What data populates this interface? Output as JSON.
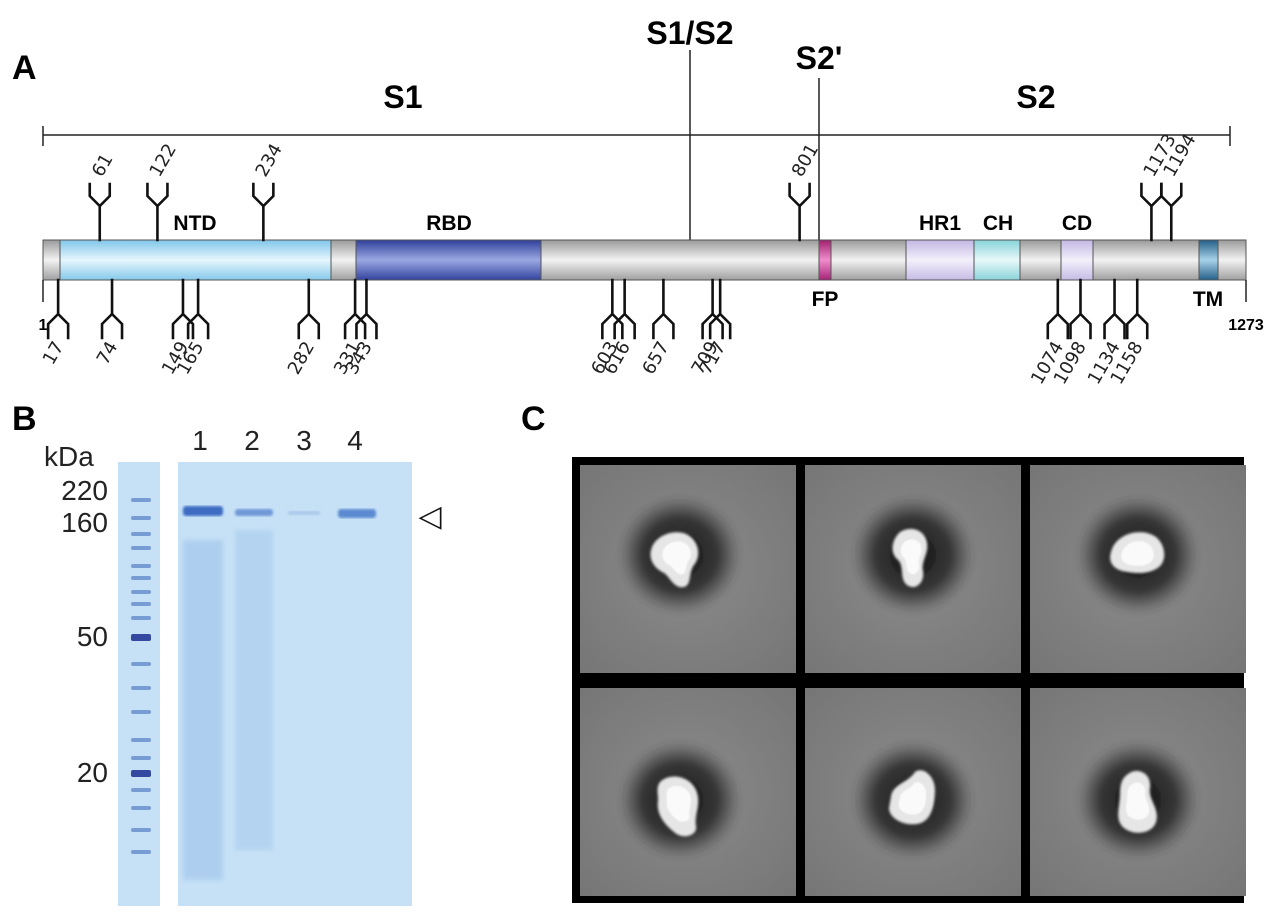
{
  "panels": {
    "a": {
      "letter": "A",
      "regions": {
        "s1": "S1",
        "s2": "S2",
        "s1s2": "S1/S2",
        "s2prime": "S2'"
      },
      "ends": {
        "start": "1",
        "end": "1273"
      },
      "domains": [
        {
          "id": "ntd",
          "label": "NTD",
          "color": "#a8dcf2"
        },
        {
          "id": "rbd",
          "label": "RBD",
          "color": "#4a5db8"
        },
        {
          "id": "fp",
          "label": "FP",
          "color": "#c0398c"
        },
        {
          "id": "hr1",
          "label": "HR1",
          "color": "#d8d0ee"
        },
        {
          "id": "ch",
          "label": "CH",
          "color": "#a9e2e6"
        },
        {
          "id": "cd",
          "label": "CD",
          "color": "#d8d0ee"
        },
        {
          "id": "tm",
          "label": "TM",
          "color": "#3f7fa6"
        }
      ],
      "glycans_top": [
        "61",
        "122",
        "234",
        "801",
        "1173",
        "1194"
      ],
      "glycans_bottom": [
        "17",
        "74",
        "149",
        "165",
        "282",
        "331",
        "343",
        "603",
        "616",
        "657",
        "709",
        "717",
        "1074",
        "1098",
        "1134",
        "1158"
      ]
    },
    "b": {
      "letter": "B",
      "unit": "kDa",
      "markers": [
        "220",
        "160",
        "50",
        "20"
      ],
      "lanes": [
        "1",
        "2",
        "3",
        "4"
      ],
      "band_marker": "◁",
      "gel_color": "#c6e1f6"
    },
    "c": {
      "letter": "C",
      "grid": {
        "rows": 2,
        "cols": 3
      }
    }
  }
}
